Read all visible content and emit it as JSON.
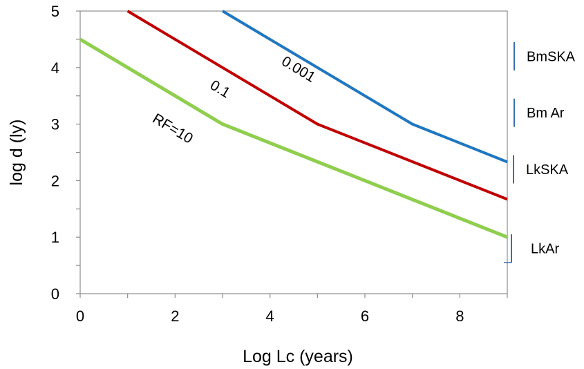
{
  "chart_data": {
    "type": "line",
    "xlabel": "Log Lc (years)",
    "ylabel": "log d (ly)",
    "xlim": [
      0,
      9
    ],
    "ylim": [
      0,
      5
    ],
    "x_ticks": [
      0,
      2,
      4,
      6,
      8
    ],
    "y_ticks": [
      0,
      1,
      2,
      3,
      4,
      5
    ],
    "grid": false,
    "series": [
      {
        "name": "0.001",
        "color": "#1f77c0",
        "x": [
          3,
          7,
          9
        ],
        "y": [
          5,
          3,
          2.33
        ]
      },
      {
        "name": "0.1",
        "color": "#c00000",
        "x": [
          1,
          5,
          9
        ],
        "y": [
          5,
          3,
          1.67
        ]
      },
      {
        "name": "RF=10",
        "color": "#8fce4e",
        "x": [
          0,
          3,
          9
        ],
        "y": [
          4.5,
          3,
          1
        ]
      }
    ],
    "side_labels": [
      {
        "text": "BmSKA",
        "y_range": [
          3.95,
          4.45
        ]
      },
      {
        "text": "Bm Ar",
        "y_range": [
          2.95,
          3.45
        ]
      },
      {
        "text": "LkSKA",
        "y_range": [
          1.95,
          2.45
        ]
      },
      {
        "text": "LkAr",
        "y_range": [
          0.55,
          1.05
        ]
      }
    ]
  }
}
